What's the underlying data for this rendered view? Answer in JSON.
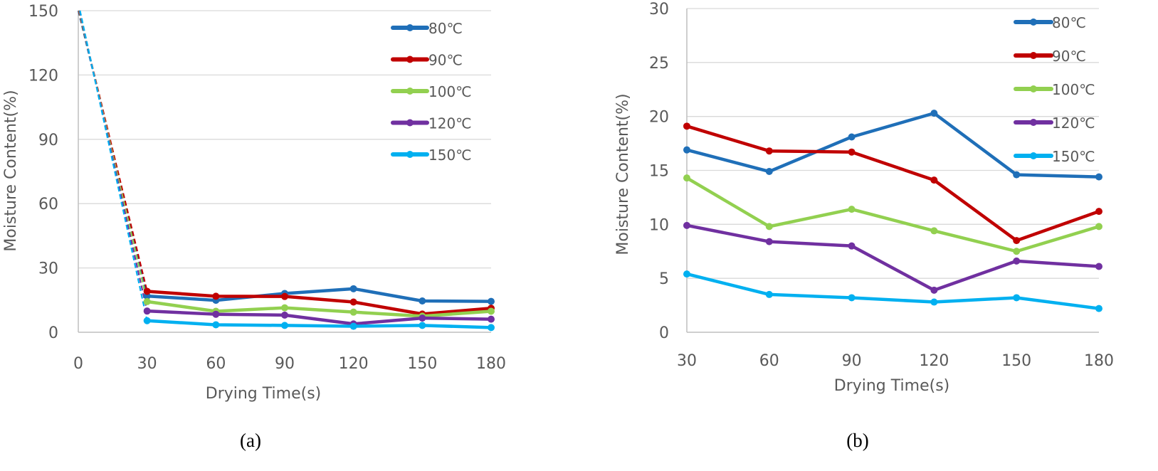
{
  "colors": {
    "s80": "#1F6FB8",
    "s90": "#C00000",
    "s100": "#92D050",
    "s120": "#7030A0",
    "s150": "#00B0F0",
    "grid": "#D9D9D9",
    "axis": "#BFBFBF",
    "text": "#595959"
  },
  "chart_data": [
    {
      "type": "line",
      "caption": "(a)",
      "xlabel": "Drying Time(s)",
      "ylabel": "Moisture Content(%)",
      "xlim": [
        0,
        180
      ],
      "ylim": [
        0,
        150
      ],
      "x_ticks": [
        "0",
        "30",
        "60",
        "90",
        "120",
        "150",
        "180"
      ],
      "y_ticks": [
        "0",
        "30",
        "60",
        "90",
        "120",
        "150"
      ],
      "grid": "horizontal",
      "legend_position": "top-right",
      "initial_segment": {
        "x": [
          0,
          30
        ],
        "y_start": 150,
        "style": "dashed"
      },
      "x": [
        30,
        60,
        90,
        120,
        150,
        180
      ],
      "series": [
        {
          "name": "80℃",
          "color_key": "s80",
          "values": [
            16.9,
            14.9,
            18.1,
            20.3,
            14.6,
            14.4
          ]
        },
        {
          "name": "90℃",
          "color_key": "s90",
          "values": [
            19.1,
            16.8,
            16.7,
            14.1,
            8.5,
            11.2
          ]
        },
        {
          "name": "100℃",
          "color_key": "s100",
          "values": [
            14.3,
            9.8,
            11.4,
            9.4,
            7.5,
            9.8
          ]
        },
        {
          "name": "120℃",
          "color_key": "s120",
          "values": [
            9.9,
            8.4,
            8.0,
            3.9,
            6.6,
            6.1
          ]
        },
        {
          "name": "150℃",
          "color_key": "s150",
          "values": [
            5.4,
            3.5,
            3.2,
            2.8,
            3.2,
            2.2
          ]
        }
      ]
    },
    {
      "type": "line",
      "caption": "(b)",
      "xlabel": "Drying Time(s)",
      "ylabel": "Moisture Content(%)",
      "xlim": [
        30,
        180
      ],
      "ylim": [
        0,
        30
      ],
      "x_ticks": [
        "30",
        "60",
        "90",
        "120",
        "150",
        "180"
      ],
      "y_ticks": [
        "0",
        "5",
        "10",
        "15",
        "20",
        "25",
        "30"
      ],
      "grid": "horizontal",
      "legend_position": "top-right",
      "x": [
        30,
        60,
        90,
        120,
        150,
        180
      ],
      "series": [
        {
          "name": "80℃",
          "color_key": "s80",
          "values": [
            16.9,
            14.9,
            18.1,
            20.3,
            14.6,
            14.4
          ]
        },
        {
          "name": "90℃",
          "color_key": "s90",
          "values": [
            19.1,
            16.8,
            16.7,
            14.1,
            8.5,
            11.2
          ]
        },
        {
          "name": "100℃",
          "color_key": "s100",
          "values": [
            14.3,
            9.8,
            11.4,
            9.4,
            7.5,
            9.8
          ]
        },
        {
          "name": "120℃",
          "color_key": "s120",
          "values": [
            9.9,
            8.4,
            8.0,
            3.9,
            6.6,
            6.1
          ]
        },
        {
          "name": "150℃",
          "color_key": "s150",
          "values": [
            5.4,
            3.5,
            3.2,
            2.8,
            3.2,
            2.2
          ]
        }
      ]
    }
  ]
}
